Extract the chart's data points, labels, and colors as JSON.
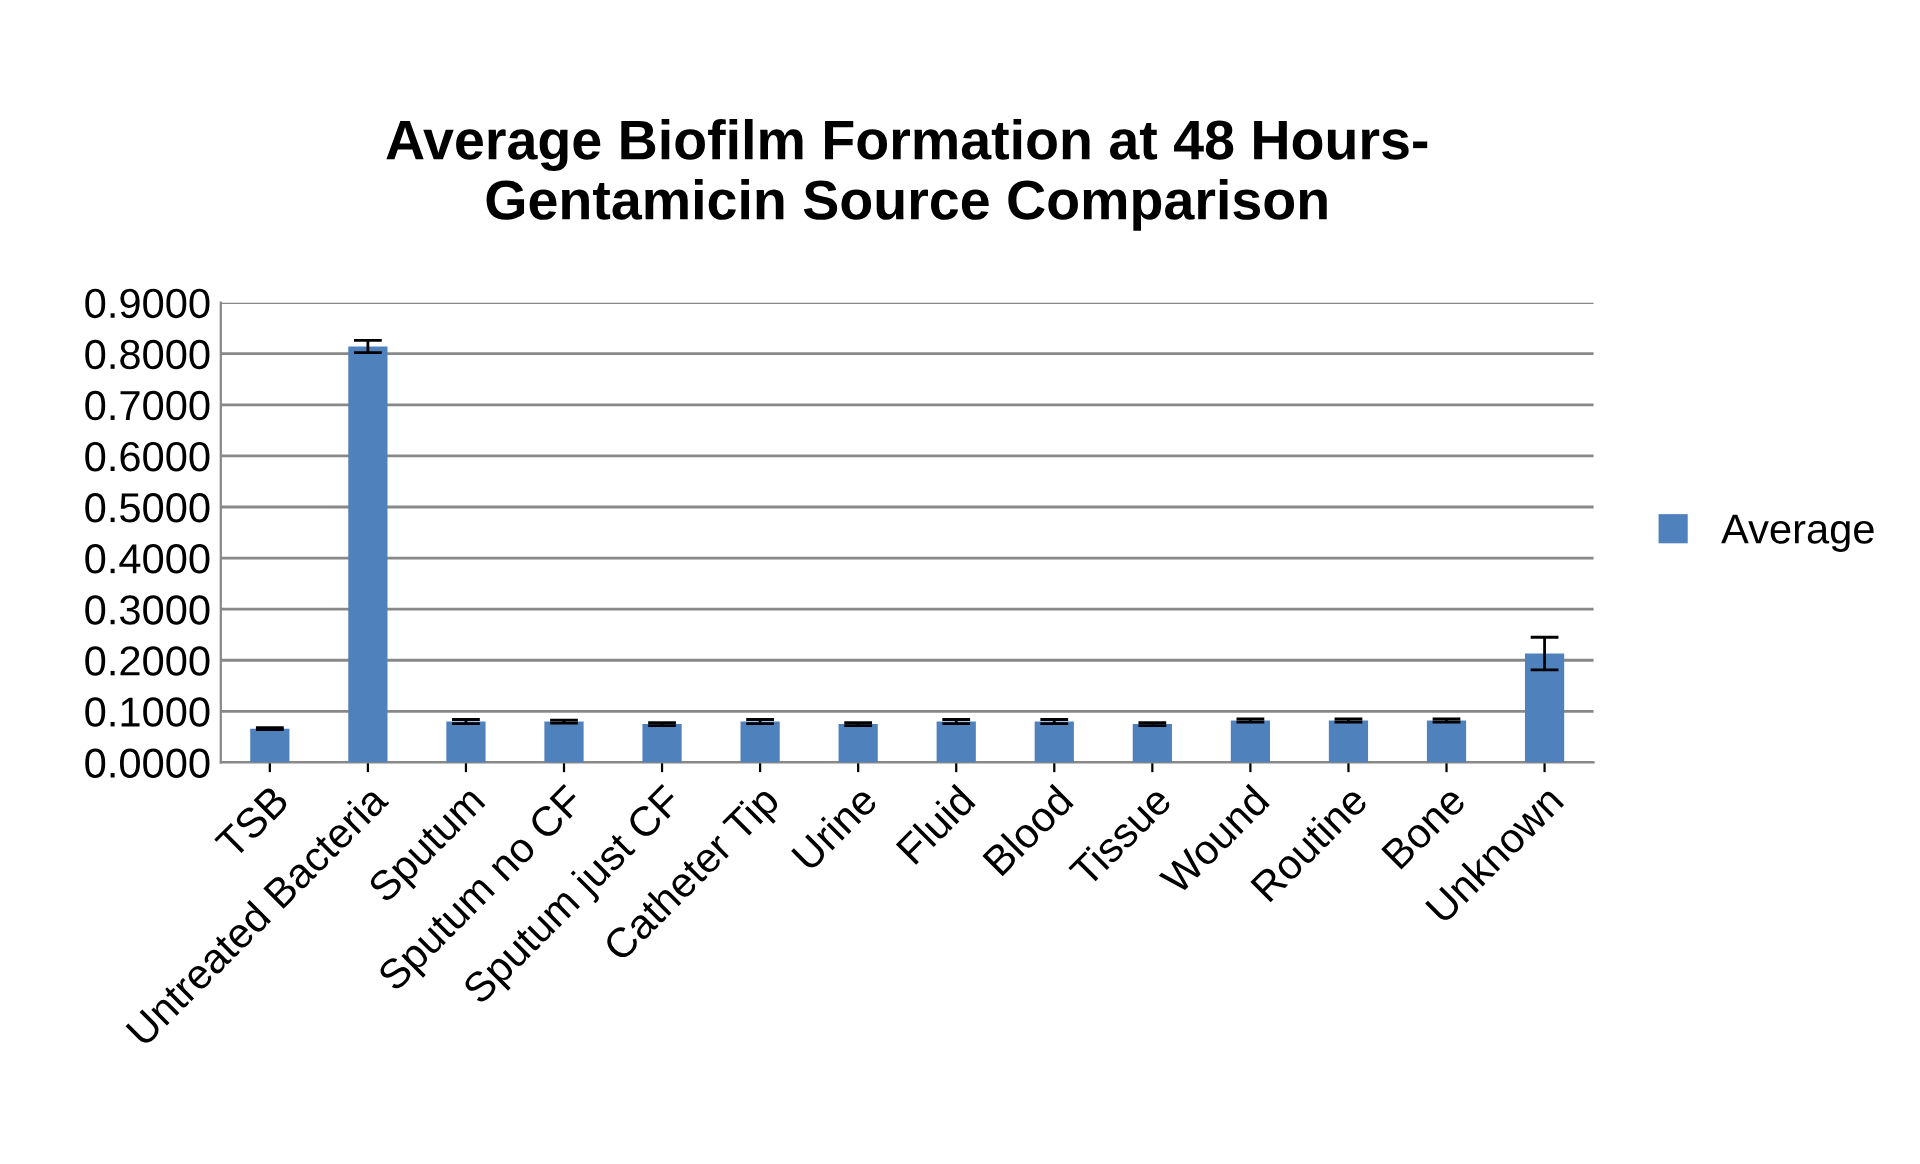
{
  "chart_data": {
    "type": "bar",
    "title": "Average Biofilm Formation at 48 Hours-\nGentamicin Source Comparison",
    "categories": [
      "TSB",
      "Untreated Bacteria",
      "Sputum",
      "Sputum no CF",
      "Sputum just CF",
      "Catheter Tip",
      "Urine",
      "Fluid",
      "Blood",
      "Tissue",
      "Wound",
      "Routine",
      "Bone",
      "Unknown"
    ],
    "series": [
      {
        "name": "Average",
        "color": "#4f81bd",
        "values": [
          0.066,
          0.814,
          0.08,
          0.08,
          0.075,
          0.08,
          0.075,
          0.08,
          0.08,
          0.075,
          0.082,
          0.082,
          0.082,
          0.213
        ],
        "errors": [
          0.002,
          0.012,
          0.004,
          0.003,
          0.003,
          0.004,
          0.003,
          0.004,
          0.004,
          0.003,
          0.003,
          0.003,
          0.003,
          0.032
        ]
      }
    ],
    "ylim": [
      0,
      0.9
    ],
    "yticks": [
      {
        "value": 0,
        "label": "0.0000"
      },
      {
        "value": 0.1,
        "label": "0.1000"
      },
      {
        "value": 0.2,
        "label": "0.2000"
      },
      {
        "value": 0.3,
        "label": "0.3000"
      },
      {
        "value": 0.4,
        "label": "0.4000"
      },
      {
        "value": 0.5,
        "label": "0.5000"
      },
      {
        "value": 0.6,
        "label": "0.6000"
      },
      {
        "value": 0.7,
        "label": "0.7000"
      },
      {
        "value": 0.8,
        "label": "0.8000"
      },
      {
        "value": 0.9,
        "label": "0.9000"
      }
    ],
    "grid": "y",
    "legend": "right"
  }
}
